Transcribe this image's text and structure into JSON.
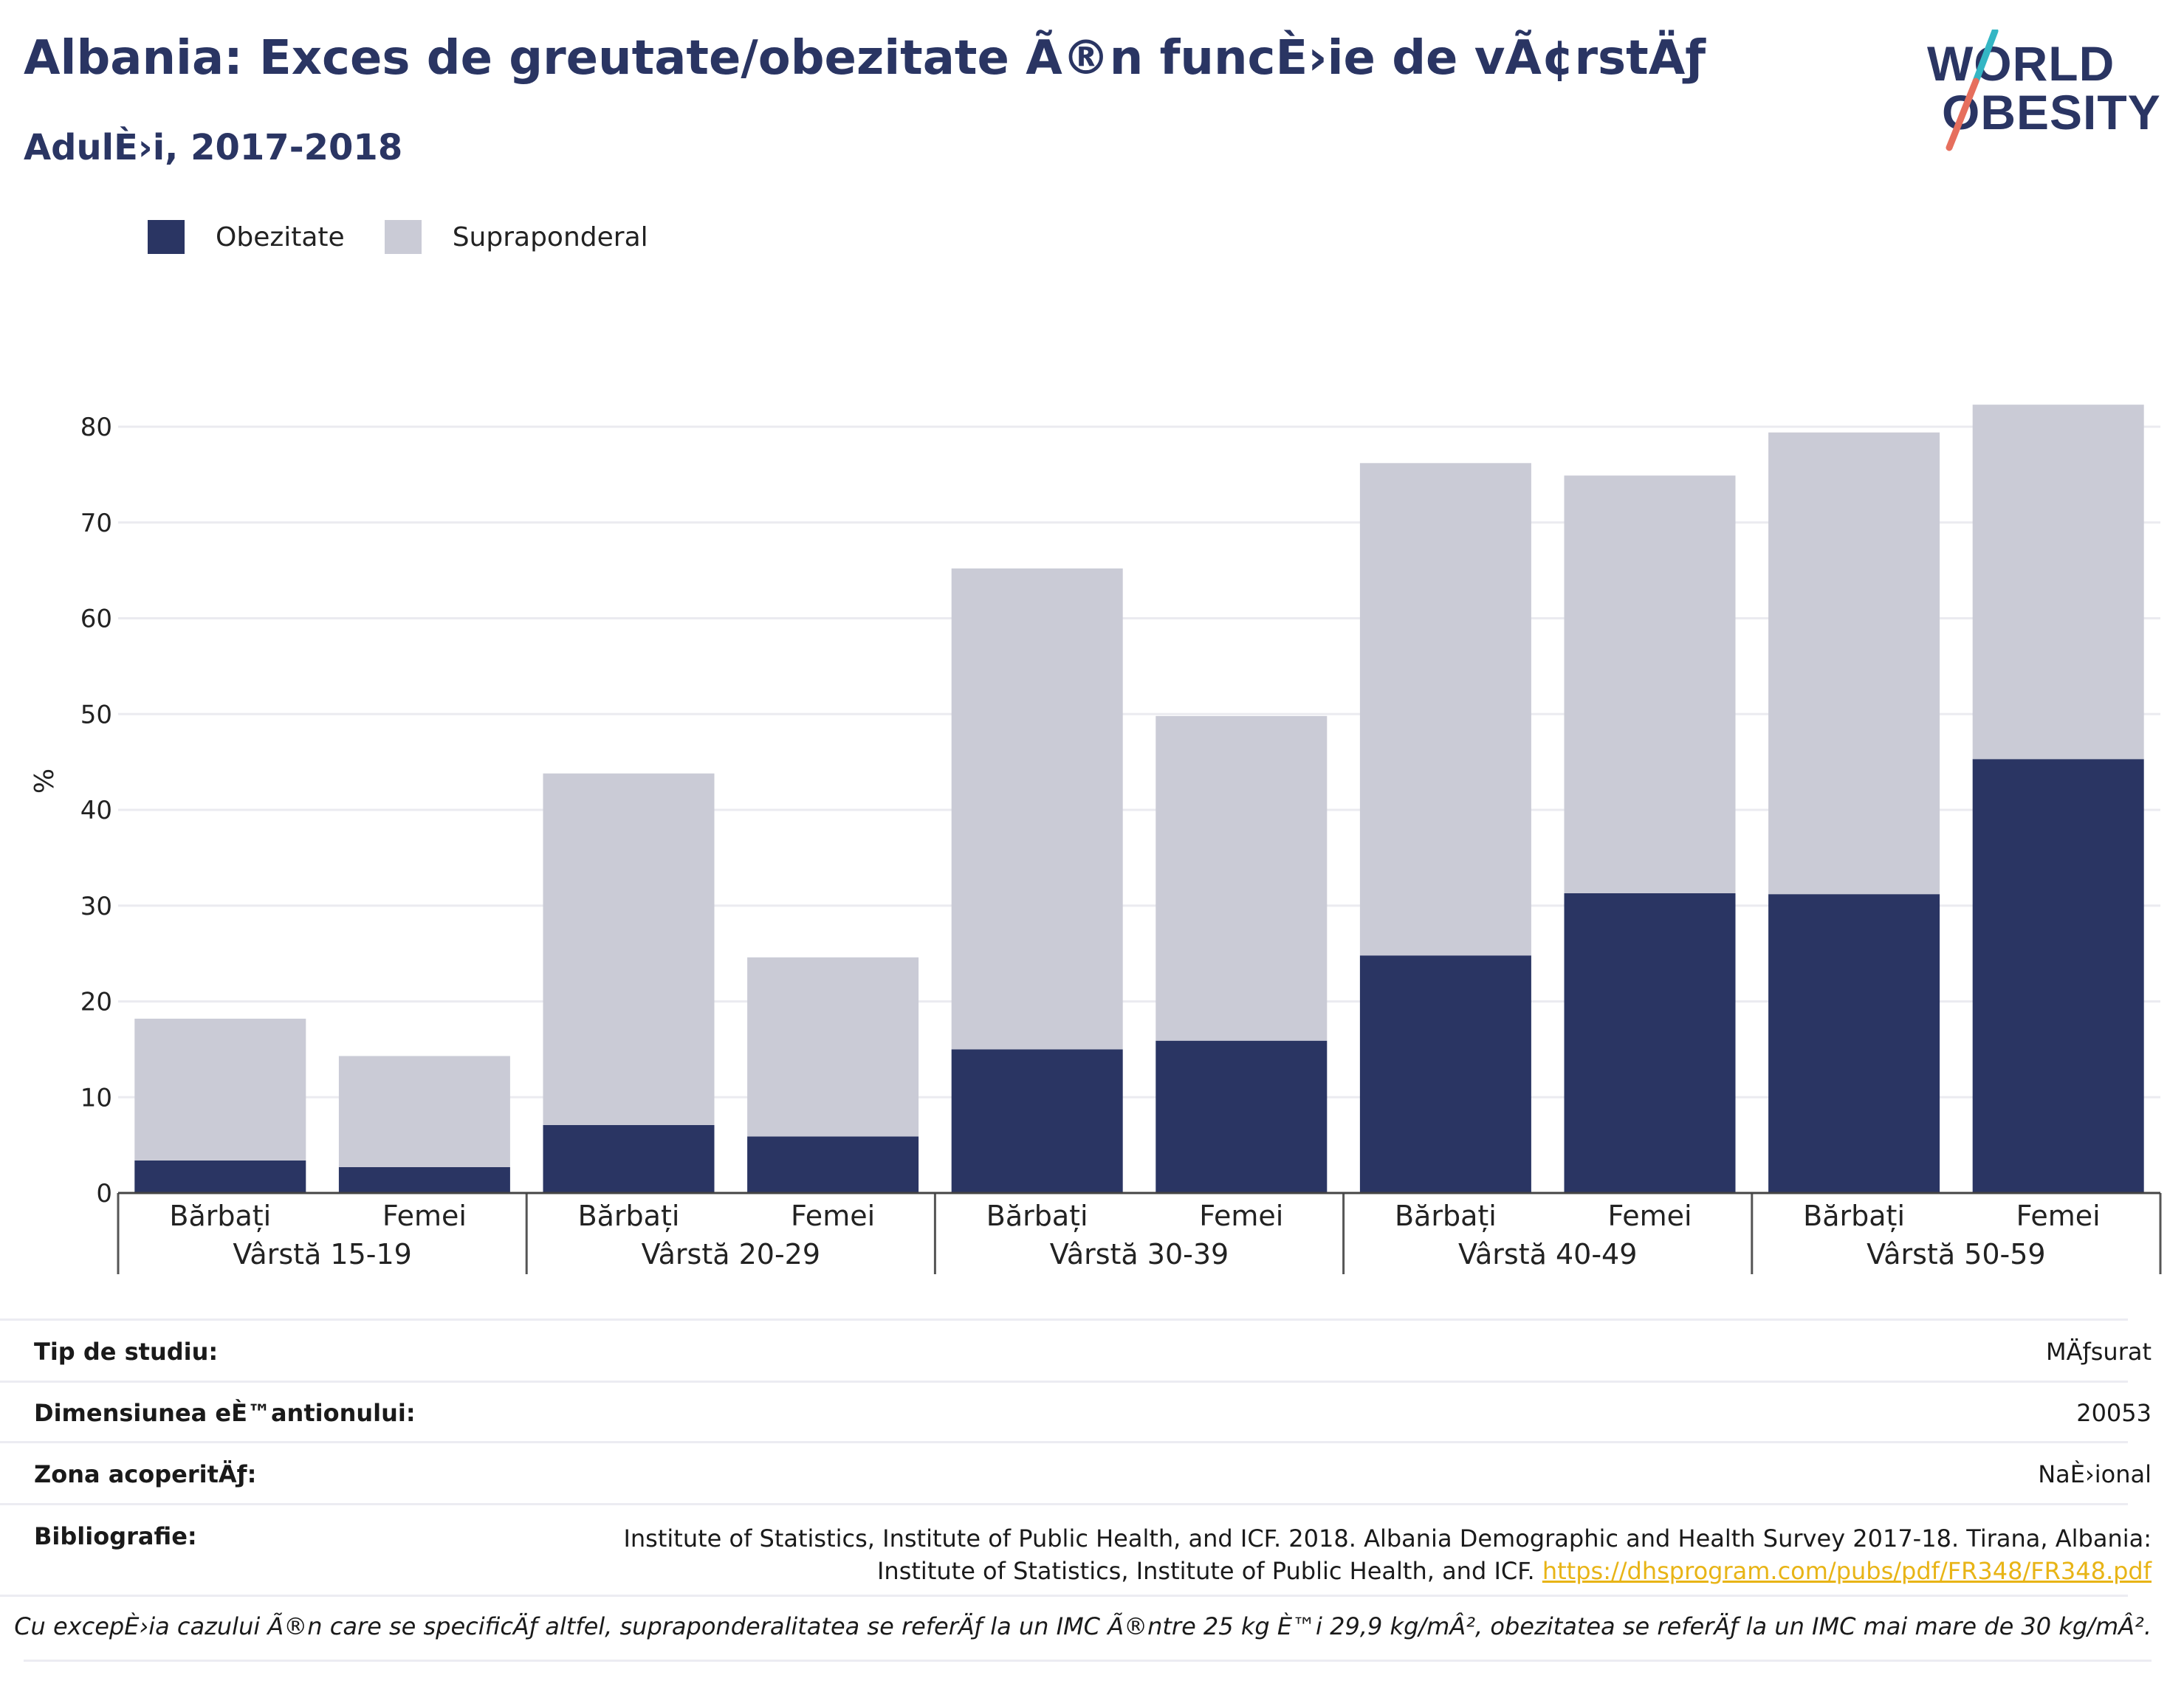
{
  "header": {
    "title": "Albania: Exces de greutate/obezitate Ã®n funcÈ›ie de vÃ¢rstÄƒ",
    "subtitle": "AdulÈ›i, 2017-2018"
  },
  "logo": {
    "line1": "WORLD",
    "line2": "OBESITY",
    "accent_colors": [
      "#34b6c4",
      "#e66f5d"
    ]
  },
  "legend": {
    "items": [
      {
        "label": "Obezitate",
        "color": "#2a3563"
      },
      {
        "label": "Supraponderal",
        "color": "#cacbd6"
      }
    ]
  },
  "chart_data": {
    "type": "bar",
    "stacked": true,
    "ylabel": "%",
    "ylim": [
      0,
      82
    ],
    "yticks": [
      0,
      10,
      20,
      30,
      40,
      50,
      60,
      70,
      80
    ],
    "grid": true,
    "legend_position": "top-left",
    "groups": [
      {
        "label": "Vârstă 15-19",
        "categories": [
          "Bărbați",
          "Femei"
        ]
      },
      {
        "label": "Vârstă 20-29",
        "categories": [
          "Bărbați",
          "Femei"
        ]
      },
      {
        "label": "Vârstă 30-39",
        "categories": [
          "Bărbați",
          "Femei"
        ]
      },
      {
        "label": "Vârstă 40-49",
        "categories": [
          "Bărbați",
          "Femei"
        ]
      },
      {
        "label": "Vârstă 50-59",
        "categories": [
          "Bărbați",
          "Femei"
        ]
      }
    ],
    "series": [
      {
        "name": "Obezitate",
        "color": "#2a3563",
        "values": [
          3.4,
          2.7,
          7.1,
          5.9,
          15.0,
          15.9,
          24.8,
          31.3,
          31.2,
          45.3
        ]
      },
      {
        "name": "Supraponderal",
        "color": "#cacbd6",
        "values": [
          14.8,
          11.6,
          36.7,
          18.7,
          50.2,
          33.9,
          51.4,
          43.6,
          48.2,
          37.0
        ]
      }
    ]
  },
  "meta": {
    "study_type_label": "Tip de studiu:",
    "study_type_value": "MÄƒsurat",
    "sample_size_label": "Dimensiunea eÈ™antionului:",
    "sample_size_value": "20053",
    "coverage_label": "Zona acoperitÄƒ:",
    "coverage_value": "NaÈ›ional",
    "bibliography_label": "Bibliografie:",
    "bibliography_line1": "Institute of Statistics, Institute of Public Health, and ICF. 2018. Albania Demographic and Health Survey 2017-18. Tirana, Albania:",
    "bibliography_line2": "Institute of Statistics, Institute of Public Health, and ICF.",
    "bibliography_link": "https://dhsprogram.com/pubs/pdf/FR348/FR348.pdf"
  },
  "footnote": "Cu excepÈ›ia cazului Ã®n care se specificÄƒ altfel, supraponderalitatea se referÄƒ la un IMC Ã®ntre 25 kg È™i 29,9 kg/mÂ², obezitatea se referÄƒ la un IMC mai mare de 30 kg/mÂ²."
}
